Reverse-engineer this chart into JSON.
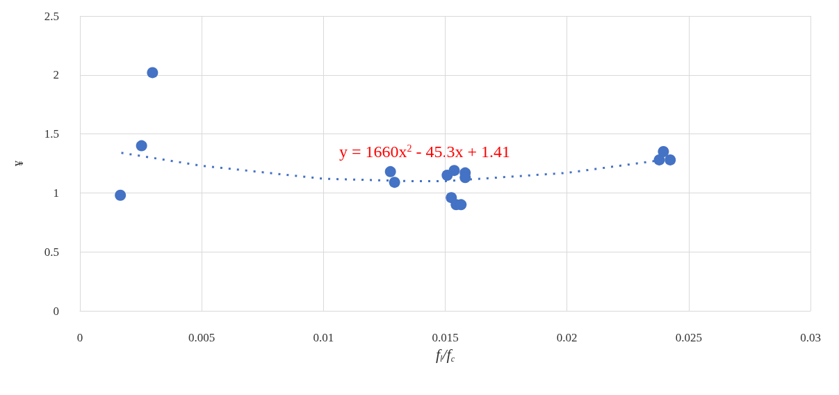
{
  "chart_data": {
    "type": "scatter",
    "xlabel": "f$_{l}$/f$_{c}$",
    "ylabel": "¥",
    "series": [
      {
        "color": "#4472c4",
        "x": [
          0.00166,
          0.00253,
          0.00298,
          0.01275,
          0.01292,
          0.01508,
          0.01525,
          0.01537,
          0.01545,
          0.01565,
          0.01582,
          0.01582,
          0.02379,
          0.02396,
          0.02424
        ],
        "values": [
          0.98,
          1.4,
          2.02,
          1.18,
          1.09,
          1.15,
          0.96,
          1.19,
          0.9,
          0.9,
          1.17,
          1.13,
          1.28,
          1.35,
          1.28
        ]
      },
      {
        "type": "line",
        "color": "#4472c4",
        "line_style": "dotted",
        "marker": "none",
        "x": [
          0.0017,
          0.005,
          0.01,
          0.0136,
          0.015,
          0.02,
          0.0243
        ],
        "values": [
          1.34,
          1.23,
          1.12,
          1.1,
          1.1,
          1.17,
          1.29
        ]
      }
    ],
    "marker": "circle",
    "annotations": [
      "y = 1660x$^{2}$ - 45.3x + 1.41"
    ],
    "xlim": [
      0,
      0.03
    ],
    "xticks": [
      0,
      0.005,
      0.01,
      0.015,
      0.02,
      0.025,
      0.03
    ],
    "ylim": [
      0,
      2.5
    ],
    "yticks": [
      0,
      0.5,
      1,
      1.5,
      2,
      2.5
    ],
    "grid": true
  }
}
